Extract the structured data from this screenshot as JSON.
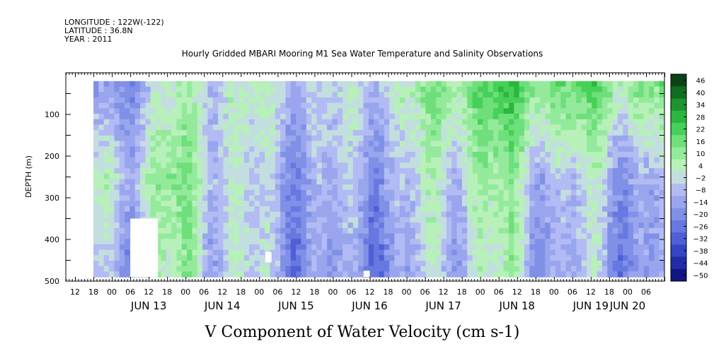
{
  "header": {
    "longitude": "LONGITUDE : 122W(-122)",
    "latitude": "LATITUDE : 36.8N",
    "year": "YEAR : 2011"
  },
  "chart_data": {
    "type": "heatmap",
    "title": "Hourly Gridded MBARI Mooring M1 Sea Water Temperature and Salinity Observations",
    "xlabel": "",
    "ylabel": "DEPTH (m)",
    "bottom_title": "V Component of Water Velocity (cm s-1)",
    "x_hour_ticks": [
      "12",
      "18",
      "00",
      "06",
      "12",
      "18",
      "00",
      "06",
      "12",
      "18",
      "00",
      "06",
      "12",
      "18",
      "00",
      "06",
      "12",
      "18",
      "00",
      "06",
      "12",
      "18",
      "00",
      "06",
      "12",
      "18",
      "00",
      "06",
      "12",
      "18",
      "00",
      "06"
    ],
    "x_day_labels": [
      "JUN 13",
      "JUN 14",
      "JUN 15",
      "JUN 16",
      "JUN 17",
      "JUN 18",
      "JUN 19",
      "JUN 20"
    ],
    "x_range": [
      "JUN 12 09:00",
      "JUN 20 12:00"
    ],
    "data_start": "JUN 12 18:00",
    "y_ticks": [
      100,
      200,
      300,
      400,
      500
    ],
    "ylim": [
      500,
      0
    ],
    "depth_range_data": [
      20,
      490
    ],
    "colorbar_levels": [
      46,
      40,
      34,
      28,
      22,
      16,
      10,
      4,
      -2,
      -8,
      -14,
      -20,
      -26,
      -32,
      -38,
      -44,
      -50
    ],
    "colorbar_colors": {
      "high": "#0b3d10",
      "mid_high": "#28c43a",
      "light_green": "#aef0ae",
      "light_blue": "#b8c0f0",
      "mid_low": "#6a7be0",
      "low": "#0a0a7a"
    },
    "approx_pattern_by_day": [
      {
        "day": "JUN 12-13",
        "surface": -15,
        "mid": 2,
        "deep": -10
      },
      {
        "day": "JUN 13-14",
        "surface": 5,
        "mid": 12,
        "deep": 6
      },
      {
        "day": "JUN 14-15",
        "surface": 2,
        "mid": -8,
        "deep": -6
      },
      {
        "day": "JUN 15-16",
        "surface": -4,
        "mid": -10,
        "deep": -18
      },
      {
        "day": "JUN 16-17",
        "surface": 6,
        "mid": -6,
        "deep": -12
      },
      {
        "day": "JUN 17-18",
        "surface": 24,
        "mid": 10,
        "deep": 4
      },
      {
        "day": "JUN 18-19",
        "surface": 20,
        "mid": -4,
        "deep": -8
      },
      {
        "day": "JUN 19-20",
        "surface": 16,
        "mid": -8,
        "deep": -12
      }
    ],
    "missing_data_regions": [
      {
        "x_start": "JUN 13 06:00",
        "x_end": "JUN 13 15:00",
        "depth_top": 350,
        "depth_bottom": 490
      },
      {
        "x_start": "JUN 15 02:00",
        "x_end": "JUN 15 04:00",
        "depth_top": 430,
        "depth_bottom": 455
      },
      {
        "x_start": "JUN 16 10:00",
        "x_end": "JUN 16 12:00",
        "depth_top": 475,
        "depth_bottom": 490
      }
    ],
    "grid": false,
    "legend": "colorbar right"
  }
}
